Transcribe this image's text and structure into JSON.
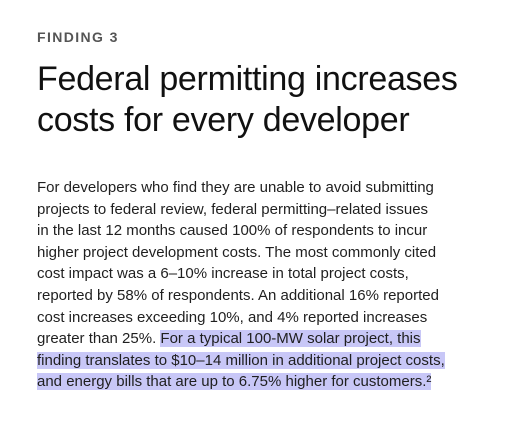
{
  "finding": {
    "eyebrow": "FINDING 3",
    "title_lines": [
      "Federal permitting increases",
      "costs for every developer"
    ]
  },
  "body": {
    "lines": [
      "For developers who find they are unable to avoid submitting",
      "projects to federal review, federal permitting–related issues",
      "in the last 12 months caused 100% of respondents to incur",
      "higher project development costs. The most commonly cited",
      "cost impact was a 6–10% increase in total project costs,",
      "reported by 58% of respondents. An additional 16% reported",
      "cost increases exceeding 10%, and 4% reported increases"
    ],
    "line8_plain": "greater than 25%. ",
    "line8_highlight": "For a typical 100-MW solar project, this",
    "highlight_lines": [
      "finding translates to $10–14 million in additional project costs,",
      "and energy bills that are up to 6.75% higher for customers.²"
    ]
  }
}
